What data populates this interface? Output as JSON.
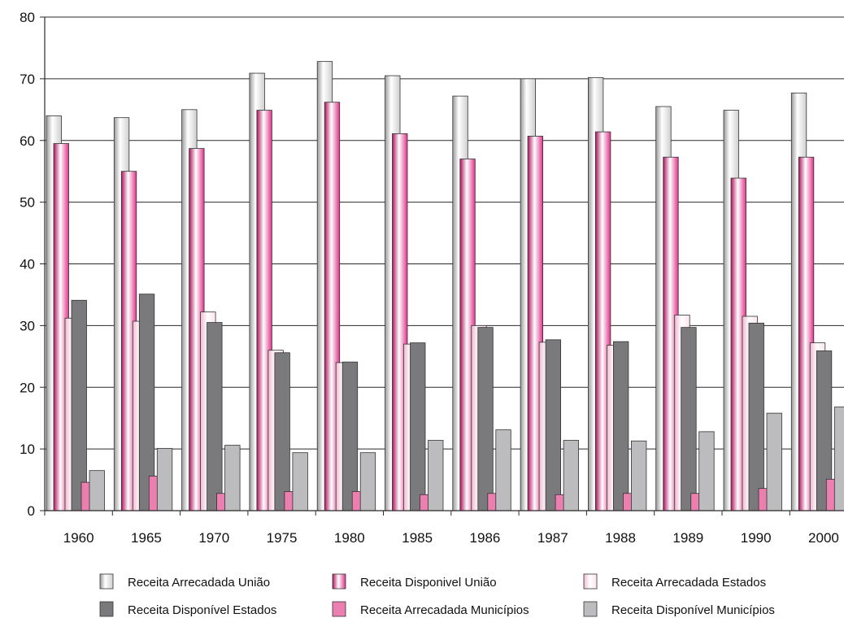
{
  "chart_data": {
    "type": "bar",
    "title": "",
    "xlabel": "",
    "ylabel": "",
    "ylim": [
      0,
      80
    ],
    "yticks": [
      0,
      10,
      20,
      30,
      40,
      50,
      60,
      70,
      80
    ],
    "grid": true,
    "legend_position": "bottom",
    "categories": [
      "1960",
      "1965",
      "1970",
      "1975",
      "1980",
      "1985",
      "1986",
      "1987",
      "1988",
      "1989",
      "1990",
      "2000"
    ],
    "series": [
      {
        "name": "Receita Arrecadada União",
        "color": "#e6e6e6",
        "style": "gray-gradient",
        "values": [
          64.0,
          63.7,
          65.0,
          70.9,
          72.8,
          70.5,
          67.2,
          70.0,
          70.2,
          65.5,
          64.9,
          67.7
        ]
      },
      {
        "name": "Receita Disponivel União",
        "color": "#e0338a",
        "style": "magenta-gradient",
        "values": [
          59.5,
          55.0,
          58.7,
          64.9,
          66.2,
          61.1,
          57.0,
          60.7,
          61.4,
          57.3,
          53.9,
          57.3
        ]
      },
      {
        "name": "Receita Arrecadada Estados",
        "color": "#fce4ee",
        "style": "pink-light",
        "values": [
          31.2,
          30.7,
          32.2,
          26.0,
          24.0,
          27.0,
          30.0,
          27.3,
          26.8,
          31.7,
          31.5,
          27.2
        ]
      },
      {
        "name": "Receita Disponível Estados",
        "color": "#7a7a7d",
        "style": "solid",
        "values": [
          34.1,
          35.1,
          30.5,
          25.6,
          24.1,
          27.2,
          29.7,
          27.7,
          27.4,
          29.7,
          30.4,
          25.9
        ]
      },
      {
        "name": "Receita Arrecadada Municípios",
        "color": "#ea7fb0",
        "style": "solid",
        "values": [
          4.6,
          5.6,
          2.8,
          3.1,
          3.1,
          2.6,
          2.8,
          2.6,
          2.8,
          2.8,
          3.6,
          5.1
        ]
      },
      {
        "name": "Receita Disponível Municípios",
        "color": "#bcbcbe",
        "style": "solid",
        "values": [
          6.5,
          10.1,
          10.6,
          9.4,
          9.4,
          11.4,
          13.1,
          11.4,
          11.3,
          12.8,
          15.8,
          16.8
        ]
      }
    ]
  }
}
